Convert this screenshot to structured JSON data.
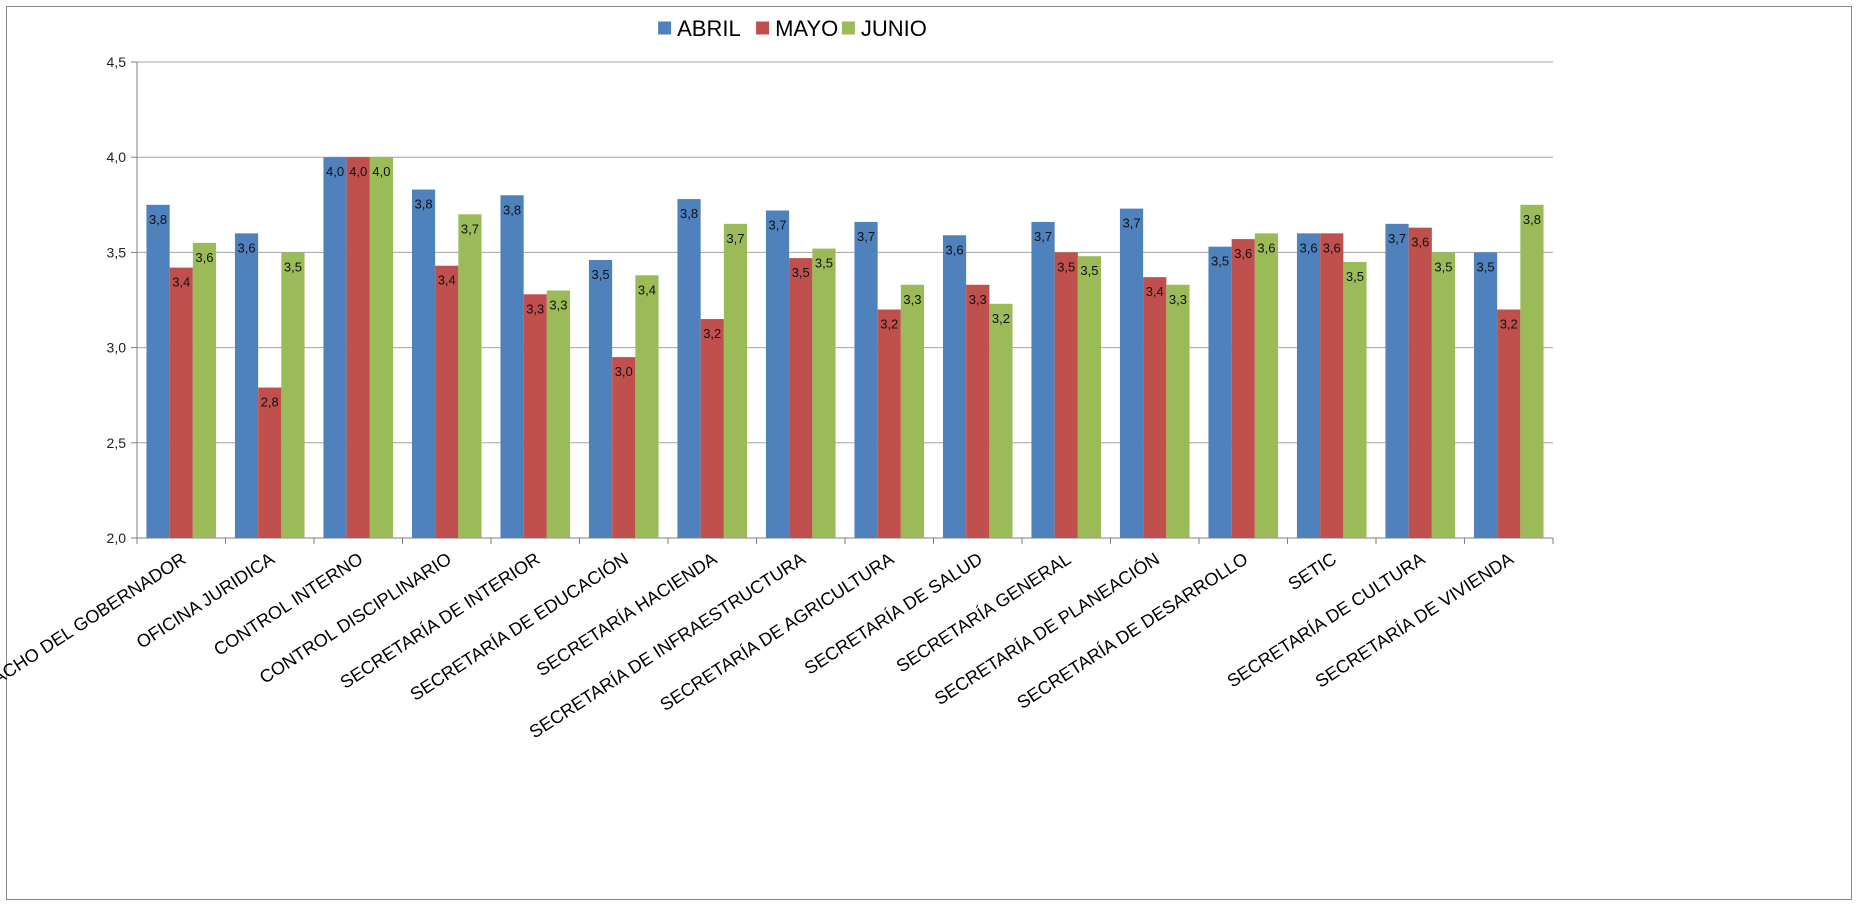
{
  "chart_data": {
    "type": "bar",
    "title": "",
    "xlabel": "",
    "ylabel": "",
    "ylim": [
      2.0,
      4.5
    ],
    "yticks": [
      "2,0",
      "2,5",
      "3,0",
      "3,5",
      "4,0",
      "4,5"
    ],
    "ytick_values": [
      2.0,
      2.5,
      3.0,
      3.5,
      4.0,
      4.5
    ],
    "grid": true,
    "legend_position": "top-center",
    "categories": [
      "DESPACHO  DEL GOBERNADOR",
      "OFICINA JURIDICA",
      "CONTROL INTERNO",
      "CONTROL DISCIPLINARIO",
      "SECRETARÍA DE INTERIOR",
      "SECRETARÍA DE EDUCACIÓN",
      "SECRETARÍA HACIENDA",
      "SECRETARÍA DE  INFRAESTRUCTURA",
      "SECRETARÍA DE AGRICULTURA",
      "SECRETARÍA DE SALUD",
      "SECRETARÍA GENERAL",
      "SECRETARÍA DE PLANEACIÓN",
      "SECRETARÍA DE DESARROLLO",
      "SETIC",
      "SECRETARÍA DE CULTURA",
      "SECRETARÍA DE VIVIENDA"
    ],
    "series": [
      {
        "name": "ABRIL",
        "color": "#4f81bd",
        "values": [
          3.75,
          3.6,
          4.0,
          3.83,
          3.8,
          3.46,
          3.78,
          3.72,
          3.66,
          3.59,
          3.66,
          3.73,
          3.53,
          3.6,
          3.65,
          3.5
        ],
        "labels": [
          "3,8",
          "3,6",
          "4,0",
          "3,8",
          "3,8",
          "3,5",
          "3,8",
          "3,7",
          "3,7",
          "3,6",
          "3,7",
          "3,7",
          "3,5",
          "3,6",
          "3,7",
          "3,5"
        ]
      },
      {
        "name": "MAYO",
        "color": "#c0504d",
        "values": [
          3.42,
          2.79,
          4.0,
          3.43,
          3.28,
          2.95,
          3.15,
          3.47,
          3.2,
          3.33,
          3.5,
          3.37,
          3.57,
          3.6,
          3.63,
          3.2
        ],
        "labels": [
          "3,4",
          "2,8",
          "4,0",
          "3,4",
          "3,3",
          "3,0",
          "3,2",
          "3,5",
          "3,2",
          "3,3",
          "3,5",
          "3,4",
          "3,6",
          "3,6",
          "3,6",
          "3,2"
        ]
      },
      {
        "name": "JUNIO",
        "color": "#9bbb59",
        "values": [
          3.55,
          3.5,
          4.0,
          3.7,
          3.3,
          3.38,
          3.65,
          3.52,
          3.33,
          3.23,
          3.48,
          3.33,
          3.6,
          3.45,
          3.5,
          3.75
        ],
        "labels": [
          "3,6",
          "3,5",
          "4,0",
          "3,7",
          "3,3",
          "3,4",
          "3,7",
          "3,5",
          "3,3",
          "3,2",
          "3,5",
          "3,3",
          "3,6",
          "3,5",
          "3,5",
          "3,8"
        ]
      }
    ]
  }
}
